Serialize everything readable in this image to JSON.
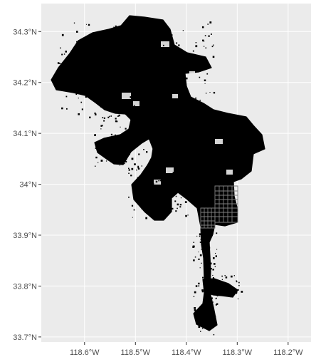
{
  "figure": {
    "panel_background": "#ebebeb",
    "gridline_color": "#ffffff",
    "feature_fill": "#000000",
    "outline_color": "#808080",
    "tick_text_color": "#4d4d4d"
  },
  "axes": {
    "x_ticks": [
      {
        "value": -118.6,
        "label": "118.6°W"
      },
      {
        "value": -118.5,
        "label": "118.5°W"
      },
      {
        "value": -118.4,
        "label": "118.4°W"
      },
      {
        "value": -118.3,
        "label": "118.3°W"
      },
      {
        "value": -118.2,
        "label": "118.2°W"
      }
    ],
    "y_ticks": [
      {
        "value": 34.3,
        "label": "34.3°N"
      },
      {
        "value": 34.2,
        "label": "34.2°N"
      },
      {
        "value": 34.1,
        "label": "34.1°N"
      },
      {
        "value": 34.0,
        "label": "34°N"
      },
      {
        "value": 33.9,
        "label": "33.9°N"
      },
      {
        "value": 33.8,
        "label": "33.8°N"
      },
      {
        "value": 33.7,
        "label": "33.7°N"
      }
    ],
    "xlim": [
      -118.685,
      -118.155
    ],
    "ylim": [
      33.69,
      34.355
    ]
  }
}
